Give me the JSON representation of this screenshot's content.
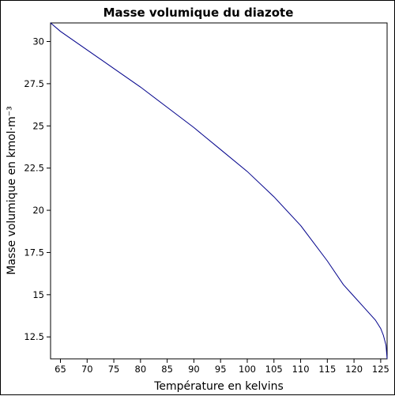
{
  "chart_data": {
    "type": "line",
    "title": "Masse volumique du diazote",
    "xlabel": "Température en kelvins",
    "ylabel": "Masse volumique en kmol·m⁻³",
    "xlim": [
      63.15,
      126.2
    ],
    "ylim": [
      11.2,
      31.1
    ],
    "x_ticks": [
      65,
      70,
      75,
      80,
      85,
      90,
      95,
      100,
      105,
      110,
      115,
      120,
      125
    ],
    "x_tick_labels": [
      "65",
      "70",
      "75",
      "80",
      "85",
      "90",
      "95",
      "100",
      "105",
      "110",
      "115",
      "120",
      "125"
    ],
    "y_ticks": [
      12.5,
      15,
      17.5,
      20,
      22.5,
      25,
      27.5,
      30
    ],
    "y_tick_labels": [
      "12.5",
      "15",
      "17.5",
      "20",
      "22.5",
      "25",
      "27.5",
      "30"
    ],
    "grid": false,
    "series": [
      {
        "color": "#00008b",
        "x": [
          63.15,
          65,
          70,
          75,
          80,
          85,
          90,
          95,
          100,
          105,
          110,
          115,
          118,
          120,
          122,
          124,
          125,
          125.5,
          126,
          126.2
        ],
        "y": [
          31.1,
          30.6,
          29.5,
          28.4,
          27.3,
          26.1,
          24.9,
          23.6,
          22.3,
          20.8,
          19.1,
          17.0,
          15.6,
          14.9,
          14.2,
          13.5,
          13.0,
          12.6,
          12.0,
          11.2
        ]
      }
    ]
  }
}
